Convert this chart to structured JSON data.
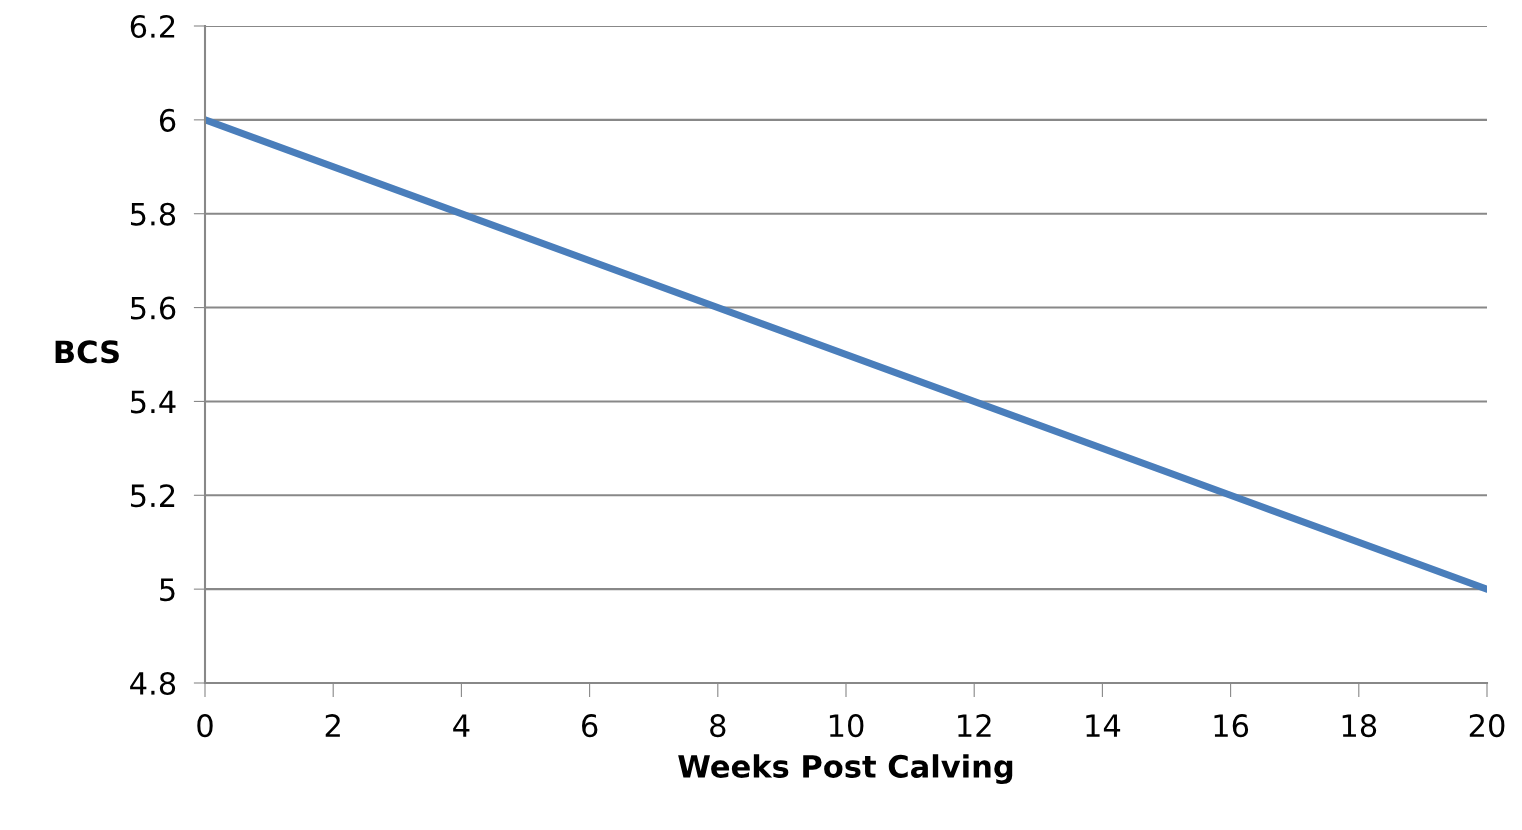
{
  "chart_data": {
    "type": "line",
    "xlabel": "Weeks Post Calving",
    "ylabel": "BCS",
    "x": [
      0,
      20
    ],
    "series": [
      {
        "color": "#4a7ebb",
        "values": [
          6,
          5
        ]
      }
    ],
    "xlim": [
      0,
      20
    ],
    "xticks": [
      0,
      2,
      4,
      6,
      8,
      10,
      12,
      14,
      16,
      18,
      20
    ],
    "ylim": [
      4.8,
      6.2
    ],
    "yticks": [
      4.8,
      5,
      5.2,
      5.4,
      5.6,
      5.8,
      6,
      6.2
    ],
    "grid": "y",
    "legend": false,
    "marker": "none",
    "line_style": "solid"
  }
}
